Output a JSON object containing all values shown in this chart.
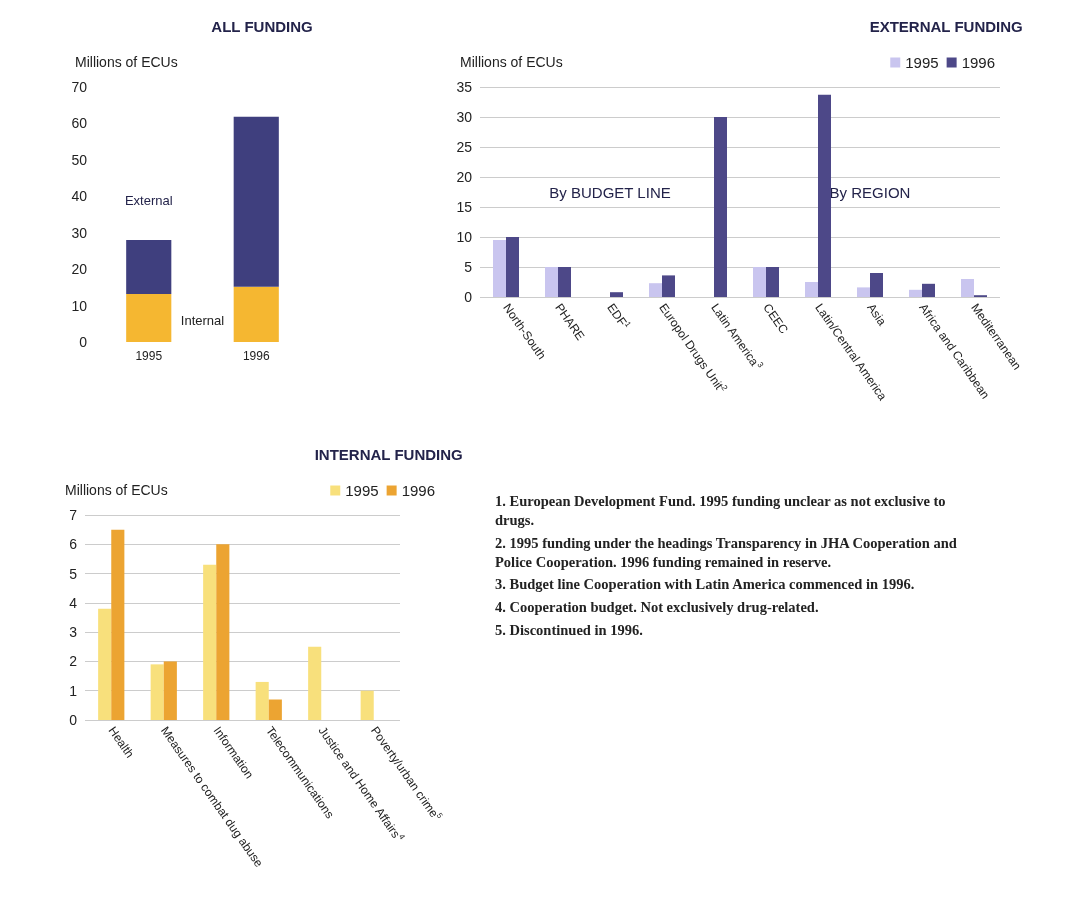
{
  "chart_data": [
    {
      "type": "bar",
      "title": "ALL FUNDING",
      "ylabel": "Millions of ECUs",
      "categories": [
        "1995",
        "1996"
      ],
      "stacked": true,
      "legend": false,
      "grid": false,
      "ylim": [
        0,
        70
      ],
      "yticks": [
        0,
        10,
        20,
        30,
        40,
        50,
        60,
        70
      ],
      "series": [
        {
          "name": "Internal",
          "color": "#f5b731",
          "values": [
            13.2,
            15.2
          ]
        },
        {
          "name": "External",
          "color": "#3f3f7e",
          "values": [
            14.8,
            46.6
          ]
        }
      ]
    },
    {
      "type": "bar",
      "title": "EXTERNAL FUNDING",
      "ylabel": "Millions of ECUs",
      "annotations": [
        "By BUDGET LINE",
        "By REGION"
      ],
      "categories": [
        "North-South",
        "PHARE",
        "EDF$^{1}$",
        "Europol Drugs Unit$^{2}$",
        "Latin America$^{3}$",
        "CEEC",
        "Latin/Central America",
        "Asia",
        "Africa and Caribbean",
        "Mediterranean"
      ],
      "legend": "top right",
      "grid": "y",
      "ylim": [
        0,
        35
      ],
      "yticks": [
        0,
        5,
        10,
        15,
        20,
        25,
        30,
        35
      ],
      "series": [
        {
          "name": "1995",
          "color": "#c9c5ef",
          "values": [
            9.5,
            5,
            null,
            2.3,
            null,
            5,
            2.5,
            1.6,
            1.2,
            3
          ]
        },
        {
          "name": "1996",
          "color": "#4d4888",
          "values": [
            10,
            5,
            0.8,
            3.6,
            30,
            5,
            33.7,
            4,
            2.2,
            0.3
          ]
        }
      ]
    },
    {
      "type": "bar",
      "title": "INTERNAL FUNDING",
      "ylabel": "Millions of ECUs",
      "annotations": [
        "1. European Development Fund. 1995 funding unclear as not exclusive to drugs.",
        "2. 1995 funding under the headings Transparency in JHA Cooperation and Police Cooperation. 1996 funding remained in reserve.",
        "3. Budget line Cooperation with Latin America commenced in 1996.",
        "4. Cooperation budget. Not exclusively drug-related.",
        "5. Discontinued in 1996."
      ],
      "categories": [
        "Health",
        "Measures to combat dug abuse",
        "Information",
        "Telecommunications",
        "Justice and Home Affairs$^{4}$",
        "Poverty/urban crime$^{5}$"
      ],
      "legend": "top right",
      "grid": "y",
      "ylim": [
        0,
        7
      ],
      "yticks": [
        0,
        1,
        2,
        3,
        4,
        5,
        6,
        7
      ],
      "series": [
        {
          "name": "1995",
          "color": "#f8e07c",
          "values": [
            3.8,
            1.9,
            5.3,
            1.3,
            2.5,
            1.0
          ]
        },
        {
          "name": "1996",
          "color": "#eca432",
          "values": [
            6.5,
            2.0,
            6.0,
            0.7,
            0,
            null
          ]
        }
      ]
    }
  ]
}
